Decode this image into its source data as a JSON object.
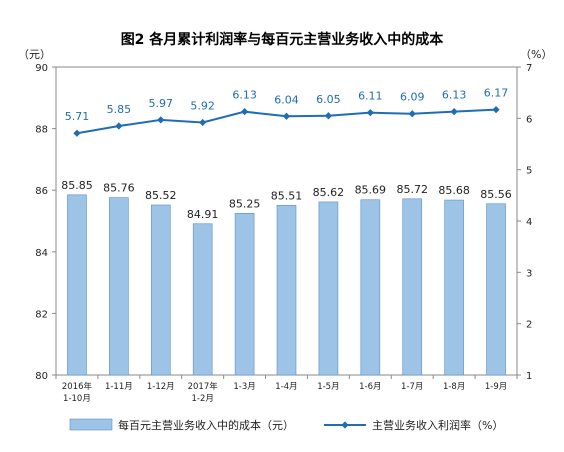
{
  "chart_data": {
    "type": "bar",
    "title": "图2  各月累计利润率与每百元主营业务收入中的成本",
    "y_left_unit": "（元）",
    "y_right_unit": "（%）",
    "categories": [
      [
        "2016年",
        "1-10月"
      ],
      [
        "1-11月"
      ],
      [
        "1-12月"
      ],
      [
        "2017年",
        "1-2月"
      ],
      [
        "1-3月"
      ],
      [
        "1-4月"
      ],
      [
        "1-5月"
      ],
      [
        "1-6月"
      ],
      [
        "1-7月"
      ],
      [
        "1-8月"
      ],
      [
        "1-9月"
      ]
    ],
    "ylim_left": [
      80,
      90
    ],
    "yticks_left": [
      80,
      82,
      84,
      86,
      88,
      90
    ],
    "ylim_right": [
      1,
      7
    ],
    "yticks_right": [
      1,
      2,
      3,
      4,
      5,
      6,
      7
    ],
    "series": [
      {
        "name": "每百元主营业务收入中的成本（元）",
        "type": "bar",
        "axis": "left",
        "color": "#9dc3e6",
        "values": [
          85.85,
          85.76,
          85.52,
          84.91,
          85.25,
          85.51,
          85.62,
          85.69,
          85.72,
          85.68,
          85.56
        ],
        "labels": [
          "85.85",
          "85.76",
          "85.52",
          "84.91",
          "85.25",
          "85.51",
          "85.62",
          "85.69",
          "85.72",
          "85.68",
          "85.56"
        ]
      },
      {
        "name": "主营业务收入利润率（%）",
        "type": "line",
        "axis": "right",
        "color": "#1f6db3",
        "values": [
          5.71,
          5.85,
          5.97,
          5.92,
          6.13,
          6.04,
          6.05,
          6.11,
          6.09,
          6.13,
          6.17
        ],
        "labels": [
          "5.71",
          "5.85",
          "5.97",
          "5.92",
          "6.13",
          "6.04",
          "6.05",
          "6.11",
          "6.09",
          "6.13",
          "6.17"
        ]
      }
    ],
    "grid": false,
    "legend": "bottom"
  }
}
